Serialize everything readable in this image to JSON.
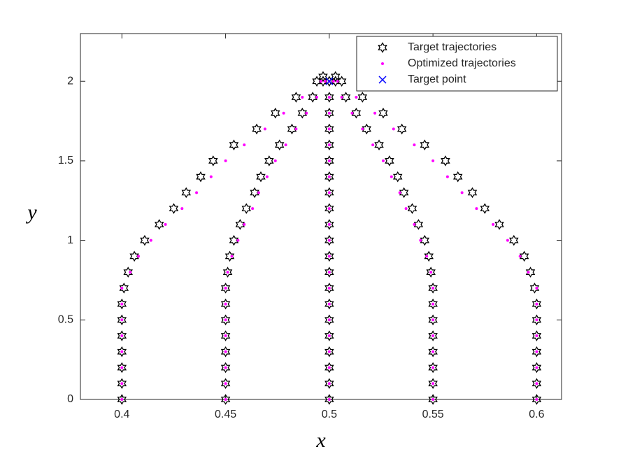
{
  "chart_data": {
    "type": "scatter",
    "x_label": "x",
    "y_label": "y",
    "xlim": [
      0.38,
      0.612
    ],
    "ylim": [
      0,
      2.3
    ],
    "xticks": [
      0.4,
      0.45,
      0.5,
      0.55,
      0.6
    ],
    "yticks": [
      0,
      0.5,
      1,
      1.5,
      2
    ],
    "legend": "northeast",
    "series": [
      {
        "name": "Target trajectories",
        "color": "#000000",
        "marker": "hexagram",
        "x": [
          0.4,
          0.4,
          0.4,
          0.4,
          0.4,
          0.4,
          0.4,
          0.401,
          0.403,
          0.406,
          0.411,
          0.418,
          0.425,
          0.431,
          0.438,
          0.444,
          0.454,
          0.465,
          0.474,
          0.484,
          0.494,
          0.497,
          0.45,
          0.45,
          0.45,
          0.45,
          0.45,
          0.45,
          0.45,
          0.45,
          0.451,
          0.452,
          0.454,
          0.457,
          0.46,
          0.464,
          0.467,
          0.471,
          0.476,
          0.482,
          0.487,
          0.492,
          0.497,
          0.5,
          0.5,
          0.5,
          0.5,
          0.5,
          0.5,
          0.5,
          0.5,
          0.5,
          0.5,
          0.5,
          0.5,
          0.5,
          0.5,
          0.5,
          0.5,
          0.5,
          0.5,
          0.5,
          0.5,
          0.5,
          0.55,
          0.55,
          0.55,
          0.55,
          0.55,
          0.55,
          0.55,
          0.55,
          0.549,
          0.548,
          0.546,
          0.543,
          0.54,
          0.536,
          0.533,
          0.529,
          0.524,
          0.518,
          0.513,
          0.508,
          0.503,
          0.6,
          0.6,
          0.6,
          0.6,
          0.6,
          0.6,
          0.6,
          0.599,
          0.597,
          0.594,
          0.589,
          0.582,
          0.575,
          0.569,
          0.562,
          0.556,
          0.546,
          0.535,
          0.526,
          0.516,
          0.506,
          0.503
        ],
        "y": [
          0,
          0.1,
          0.2,
          0.3,
          0.4,
          0.5,
          0.6,
          0.7,
          0.8,
          0.9,
          1,
          1.1,
          1.2,
          1.3,
          1.4,
          1.5,
          1.6,
          1.7,
          1.8,
          1.9,
          2,
          2.03,
          0,
          0.1,
          0.2,
          0.3,
          0.4,
          0.5,
          0.6,
          0.7,
          0.8,
          0.9,
          1,
          1.1,
          1.2,
          1.3,
          1.4,
          1.5,
          1.6,
          1.7,
          1.8,
          1.9,
          2,
          0,
          0.1,
          0.2,
          0.3,
          0.4,
          0.5,
          0.6,
          0.7,
          0.8,
          0.9,
          1,
          1.1,
          1.2,
          1.3,
          1.4,
          1.5,
          1.6,
          1.7,
          1.8,
          1.9,
          2,
          0,
          0.1,
          0.2,
          0.3,
          0.4,
          0.5,
          0.6,
          0.7,
          0.8,
          0.9,
          1,
          1.1,
          1.2,
          1.3,
          1.4,
          1.5,
          1.6,
          1.7,
          1.8,
          1.9,
          2,
          0,
          0.1,
          0.2,
          0.3,
          0.4,
          0.5,
          0.6,
          0.7,
          0.8,
          0.9,
          1,
          1.1,
          1.2,
          1.3,
          1.4,
          1.5,
          1.6,
          1.7,
          1.8,
          1.9,
          2,
          2.03
        ]
      },
      {
        "name": "Optimized trajectories",
        "color": "#ff00ff",
        "marker": "dot",
        "x": [
          0.4,
          0.4,
          0.4,
          0.4,
          0.4,
          0.4,
          0.4,
          0.4,
          0.404,
          0.408,
          0.414,
          0.421,
          0.429,
          0.436,
          0.443,
          0.45,
          0.459,
          0.469,
          0.478,
          0.487,
          0.496,
          0.45,
          0.45,
          0.45,
          0.45,
          0.45,
          0.45,
          0.45,
          0.45,
          0.451,
          0.453,
          0.456,
          0.459,
          0.463,
          0.466,
          0.47,
          0.474,
          0.479,
          0.484,
          0.489,
          0.494,
          0.498,
          0.5,
          0.5,
          0.5,
          0.5,
          0.5,
          0.5,
          0.5,
          0.5,
          0.5,
          0.5,
          0.5,
          0.5,
          0.5,
          0.5,
          0.5,
          0.5,
          0.5,
          0.5,
          0.5,
          0.5,
          0.5,
          0.55,
          0.55,
          0.55,
          0.55,
          0.55,
          0.55,
          0.55,
          0.55,
          0.549,
          0.547,
          0.544,
          0.541,
          0.537,
          0.534,
          0.53,
          0.526,
          0.521,
          0.516,
          0.511,
          0.506,
          0.502,
          0.6,
          0.6,
          0.6,
          0.6,
          0.6,
          0.6,
          0.6,
          0.6,
          0.596,
          0.592,
          0.586,
          0.579,
          0.571,
          0.564,
          0.557,
          0.55,
          0.541,
          0.531,
          0.522,
          0.513,
          0.504
        ],
        "y": [
          0,
          0.1,
          0.2,
          0.3,
          0.4,
          0.5,
          0.6,
          0.7,
          0.8,
          0.9,
          1,
          1.1,
          1.2,
          1.3,
          1.4,
          1.5,
          1.6,
          1.7,
          1.8,
          1.9,
          2,
          0,
          0.1,
          0.2,
          0.3,
          0.4,
          0.5,
          0.6,
          0.7,
          0.8,
          0.9,
          1,
          1.1,
          1.2,
          1.3,
          1.4,
          1.5,
          1.6,
          1.7,
          1.8,
          1.9,
          2,
          0,
          0.1,
          0.2,
          0.3,
          0.4,
          0.5,
          0.6,
          0.7,
          0.8,
          0.9,
          1,
          1.1,
          1.2,
          1.3,
          1.4,
          1.5,
          1.6,
          1.7,
          1.8,
          1.9,
          2,
          0,
          0.1,
          0.2,
          0.3,
          0.4,
          0.5,
          0.6,
          0.7,
          0.8,
          0.9,
          1,
          1.1,
          1.2,
          1.3,
          1.4,
          1.5,
          1.6,
          1.7,
          1.8,
          1.9,
          2,
          0,
          0.1,
          0.2,
          0.3,
          0.4,
          0.5,
          0.6,
          0.7,
          0.8,
          0.9,
          1,
          1.1,
          1.2,
          1.3,
          1.4,
          1.5,
          1.6,
          1.7,
          1.8,
          1.9,
          2
        ]
      },
      {
        "name": "Target point",
        "color": "#0000ff",
        "marker": "x",
        "x": [
          0.5
        ],
        "y": [
          2
        ]
      }
    ]
  }
}
